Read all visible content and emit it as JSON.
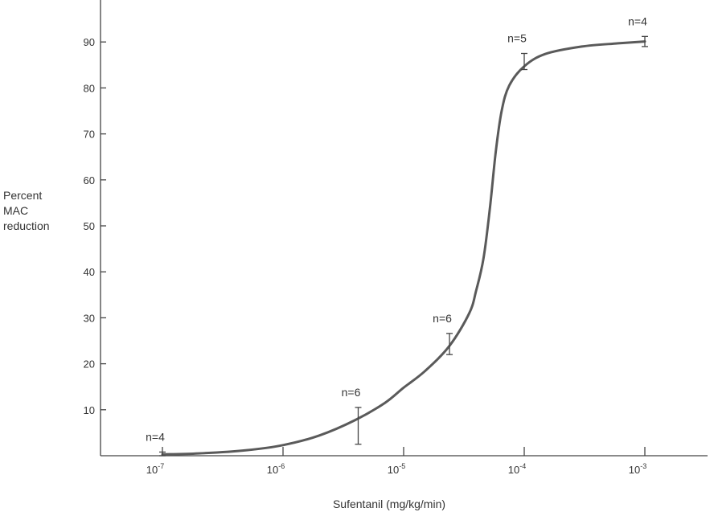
{
  "chart_data": {
    "type": "line",
    "xlabel": "Sufentanil (mg/kg/min)",
    "ylabel_lines": [
      "Percent",
      "MAC",
      "reduction"
    ],
    "x_scale": "log",
    "xlim": [
      1e-07,
      0.001
    ],
    "ylim": [
      0,
      90
    ],
    "x_ticks": [
      {
        "value": 1e-07,
        "base": "10",
        "exp": "-7"
      },
      {
        "value": 1e-06,
        "base": "10",
        "exp": "-6"
      },
      {
        "value": 1e-05,
        "base": "10",
        "exp": "-5"
      },
      {
        "value": 0.0001,
        "base": "10",
        "exp": "-4"
      },
      {
        "value": 0.001,
        "base": "10",
        "exp": "-3"
      }
    ],
    "y_ticks": [
      10,
      20,
      30,
      40,
      50,
      60,
      70,
      80,
      90
    ],
    "grid": false,
    "curve": {
      "x": [
        1e-07,
        2e-07,
        5e-07,
        1e-06,
        2e-06,
        4e-06,
        7e-06,
        1e-05,
        1.5e-05,
        2.4e-05,
        3.5e-05,
        4e-05,
        4.6e-05,
        5.2e-05,
        5.8e-05,
        6.5e-05,
        7.5e-05,
        0.0001,
        0.00015,
        0.0003,
        0.0006,
        0.001
      ],
      "y": [
        0.3,
        0.5,
        1.2,
        2.3,
        4.4,
        7.8,
        11.5,
        14.8,
        18.4,
        23.9,
        31,
        36,
        43,
        54,
        66,
        75,
        80.5,
        84.7,
        87.4,
        89,
        89.7,
        90.1
      ]
    },
    "points": [
      {
        "x": 1e-07,
        "y": 0.3,
        "err_low": 0,
        "err_high": 0.8,
        "label": "n=4"
      },
      {
        "x": 4.2e-06,
        "y": 7,
        "err_low": 2.5,
        "err_high": 10.5,
        "label": "n=6"
      },
      {
        "x": 2.4e-05,
        "y": 24.3,
        "err_low": 22,
        "err_high": 26.6,
        "label": "n=6"
      },
      {
        "x": 0.0001,
        "y": 85.8,
        "err_low": 84,
        "err_high": 87.5,
        "label": "n=5"
      },
      {
        "x": 0.001,
        "y": 90.1,
        "err_low": 89,
        "err_high": 91.2,
        "label": "n=4"
      }
    ]
  }
}
